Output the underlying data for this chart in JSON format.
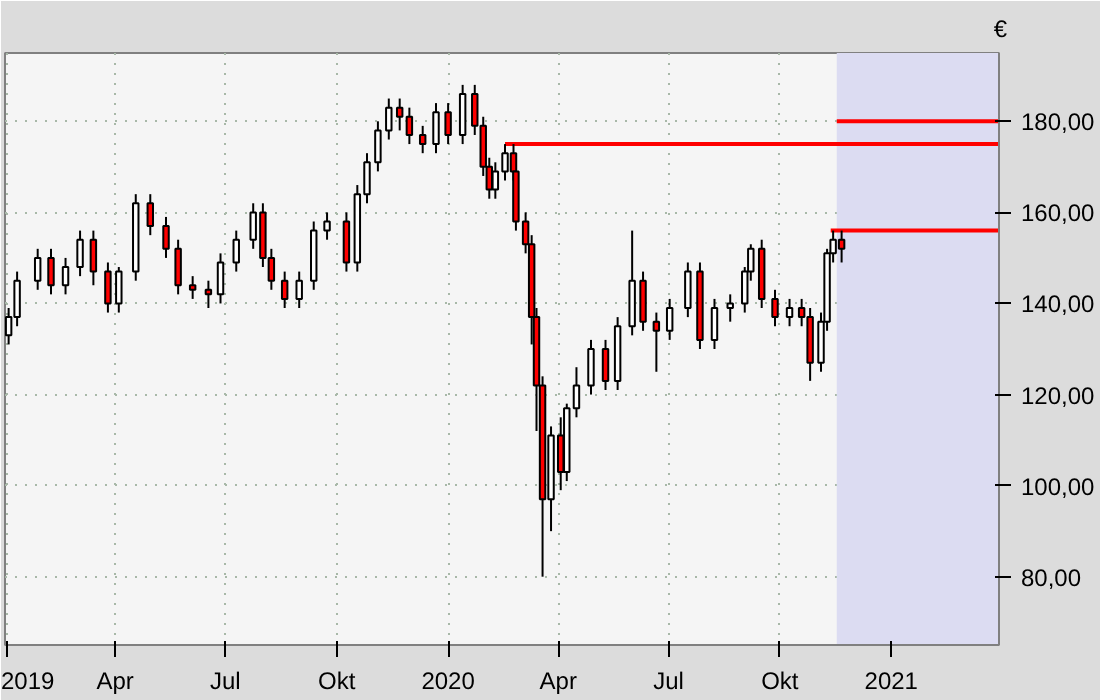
{
  "chart_data": {
    "type": "candlestick",
    "ylabel": "€",
    "x": [
      "2019-01-03",
      "2019-01-10",
      "2019-01-27",
      "2019-02-07",
      "2019-02-19",
      "2019-03-03",
      "2019-03-14",
      "2019-03-26",
      "2019-04-04",
      "2019-04-18",
      "2019-04-30",
      "2019-05-13",
      "2019-05-23",
      "2019-06-04",
      "2019-06-17",
      "2019-06-27",
      "2019-07-10",
      "2019-07-24",
      "2019-08-01",
      "2019-08-08",
      "2019-08-19",
      "2019-08-31",
      "2019-09-12",
      "2019-09-23",
      "2019-10-09",
      "2019-10-18",
      "2019-10-26",
      "2019-11-04",
      "2019-11-13",
      "2019-11-22",
      "2019-11-30",
      "2019-12-11",
      "2019-12-22",
      "2020-01-01",
      "2020-01-13",
      "2020-01-23",
      "2020-01-30",
      "2020-02-04",
      "2020-02-09",
      "2020-02-17",
      "2020-02-24",
      "2020-02-26",
      "2020-03-05",
      "2020-03-10",
      "2020-03-14",
      "2020-03-19",
      "2020-03-26",
      "2020-04-03",
      "2020-04-08",
      "2020-04-16",
      "2020-04-28",
      "2020-05-10",
      "2020-05-20",
      "2020-06-01",
      "2020-06-10",
      "2020-06-21",
      "2020-07-02",
      "2020-07-17",
      "2020-07-27",
      "2020-08-08",
      "2020-08-21",
      "2020-09-02",
      "2020-09-07",
      "2020-09-16",
      "2020-09-27",
      "2020-10-09",
      "2020-10-19",
      "2020-10-26",
      "2020-11-04",
      "2020-11-09",
      "2020-11-14",
      "2020-11-21"
    ],
    "ohlc": [
      [
        133,
        139,
        131,
        137
      ],
      [
        137,
        147,
        135,
        145
      ],
      [
        145,
        152,
        143,
        150
      ],
      [
        150,
        152,
        142,
        144
      ],
      [
        144,
        150,
        142,
        148
      ],
      [
        148,
        156,
        146,
        154
      ],
      [
        154,
        156,
        144,
        147
      ],
      [
        147,
        149,
        138,
        140
      ],
      [
        140,
        148,
        138,
        147
      ],
      [
        147,
        164,
        145,
        162
      ],
      [
        162,
        164,
        155,
        157
      ],
      [
        157,
        159,
        150,
        152
      ],
      [
        152,
        154,
        142,
        144
      ],
      [
        144,
        146,
        141,
        143
      ],
      [
        143,
        145,
        139,
        142
      ],
      [
        142,
        151,
        140,
        149
      ],
      [
        149,
        156,
        147,
        154
      ],
      [
        154,
        162,
        152,
        160
      ],
      [
        160,
        162,
        148,
        150
      ],
      [
        150,
        152,
        143,
        145
      ],
      [
        145,
        147,
        139,
        141
      ],
      [
        141,
        147,
        139,
        145
      ],
      [
        145,
        158,
        143,
        156
      ],
      [
        156,
        160,
        154,
        158
      ],
      [
        158,
        160,
        147,
        149
      ],
      [
        149,
        166,
        147,
        164
      ],
      [
        164,
        173,
        162,
        171
      ],
      [
        171,
        180,
        169,
        178
      ],
      [
        178,
        185,
        176,
        183
      ],
      [
        183,
        185,
        178,
        181
      ],
      [
        181,
        183,
        175,
        177
      ],
      [
        177,
        179,
        173,
        175
      ],
      [
        175,
        184,
        173,
        182
      ],
      [
        182,
        184,
        175,
        177
      ],
      [
        177,
        188,
        175,
        186
      ],
      [
        186,
        188,
        177,
        179
      ],
      [
        179,
        181,
        168,
        170
      ],
      [
        170,
        172,
        163,
        165
      ],
      [
        165,
        171,
        163,
        169
      ],
      [
        169,
        175,
        167,
        173
      ],
      [
        173,
        175,
        167,
        169
      ],
      [
        169,
        171,
        156,
        158
      ],
      [
        158,
        160,
        151,
        153
      ],
      [
        153,
        155,
        131,
        137
      ],
      [
        137,
        139,
        112,
        122
      ],
      [
        122,
        124,
        80,
        97
      ],
      [
        97,
        113,
        90,
        111
      ],
      [
        111,
        115,
        99,
        103
      ],
      [
        103,
        118,
        101,
        117
      ],
      [
        117,
        126,
        115,
        122
      ],
      [
        122,
        132,
        120,
        130
      ],
      [
        130,
        132,
        121,
        123
      ],
      [
        123,
        137,
        121,
        135
      ],
      [
        135,
        156,
        133,
        145
      ],
      [
        145,
        147,
        134,
        136
      ],
      [
        136,
        138,
        125,
        134
      ],
      [
        134,
        141,
        132,
        139
      ],
      [
        139,
        149,
        137,
        147
      ],
      [
        147,
        149,
        130,
        132
      ],
      [
        132,
        141,
        130,
        139
      ],
      [
        139,
        142,
        136,
        140
      ],
      [
        140,
        148,
        138,
        147
      ],
      [
        147,
        153,
        145,
        152
      ],
      [
        152,
        154,
        139,
        141
      ],
      [
        141,
        143,
        135,
        137
      ],
      [
        137,
        141,
        135,
        139
      ],
      [
        139,
        141,
        135,
        137
      ],
      [
        137,
        139,
        123,
        127
      ],
      [
        127,
        138,
        125,
        136
      ],
      [
        136,
        152,
        134,
        151
      ],
      [
        151,
        156,
        149,
        154
      ],
      [
        154,
        156,
        149,
        152
      ]
    ],
    "series": [
      {
        "type": "line",
        "color": "#ff0000",
        "x": [
          "2020-11-17",
          "2021-03-31"
        ],
        "values": [
          180,
          180
        ]
      },
      {
        "type": "line",
        "color": "#ff0000",
        "x": [
          "2020-02-17",
          "2021-03-31"
        ],
        "values": [
          175,
          175
        ]
      },
      {
        "type": "line",
        "color": "#ff0000",
        "x": [
          "2020-11-12",
          "2021-03-31"
        ],
        "values": [
          156,
          156
        ]
      }
    ],
    "bands": [
      {
        "axis": "x",
        "from": "2020-11-17",
        "to": "2021-03-31",
        "color": "#dcdcf2"
      }
    ],
    "xlim": [
      "2018-12-31",
      "2021-03-31"
    ],
    "xticks": [
      {
        "value": "2019-01-01",
        "label": "2019"
      },
      {
        "value": "2019-04-01",
        "label": "Apr"
      },
      {
        "value": "2019-07-01",
        "label": "Jul"
      },
      {
        "value": "2019-10-01",
        "label": "Okt"
      },
      {
        "value": "2020-01-01",
        "label": "2020"
      },
      {
        "value": "2020-04-01",
        "label": "Apr"
      },
      {
        "value": "2020-07-01",
        "label": "Jul"
      },
      {
        "value": "2020-10-01",
        "label": "Okt"
      },
      {
        "value": "2021-01-01",
        "label": "2021"
      }
    ],
    "ylim": [
      65,
      195
    ],
    "yticks": [
      {
        "value": 80,
        "label": "80,00"
      },
      {
        "value": 100,
        "label": "100,00"
      },
      {
        "value": 120,
        "label": "120,00"
      },
      {
        "value": 140,
        "label": "140,00"
      },
      {
        "value": 160,
        "label": "160,00"
      },
      {
        "value": 180,
        "label": "180,00"
      }
    ],
    "grid": true
  }
}
